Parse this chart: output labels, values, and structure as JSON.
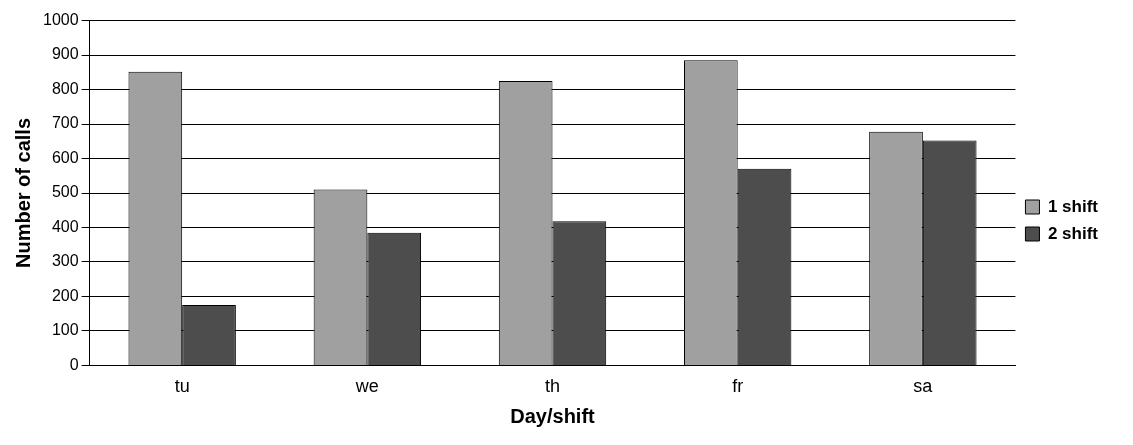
{
  "chart_data": {
    "type": "bar",
    "xlabel": "Day/shift",
    "ylabel": "Number of calls",
    "categories": [
      "tu",
      "we",
      "th",
      "fr",
      "sa"
    ],
    "series": [
      {
        "name": "1 shift",
        "color": "#a0a0a0",
        "values": [
          852,
          510,
          825,
          885,
          678
        ]
      },
      {
        "name": "2 shift",
        "color": "#4d4d4d",
        "values": [
          175,
          385,
          418,
          570,
          652
        ]
      }
    ],
    "ylim": [
      0,
      1000
    ],
    "yticks": [
      0,
      100,
      200,
      300,
      400,
      500,
      600,
      700,
      800,
      900,
      1000
    ],
    "grid": "y",
    "legend": "right"
  }
}
